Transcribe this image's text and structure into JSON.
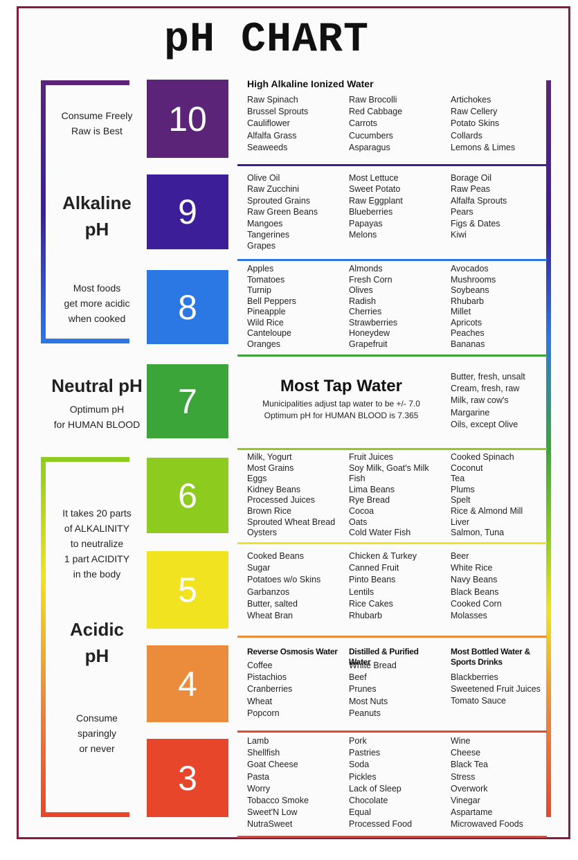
{
  "title": "pH CHART",
  "side": {
    "alkaline": {
      "note_top": [
        "Consume Freely",
        "Raw is Best"
      ],
      "label": [
        "Alkaline",
        "pH"
      ],
      "note_bottom": [
        "Most foods",
        "get more acidic",
        "when cooked"
      ]
    },
    "neutral": {
      "label": "Neutral pH",
      "note": [
        "Optimum pH",
        "for HUMAN BLOOD"
      ]
    },
    "acidic": {
      "note_top": [
        "It takes 20 parts",
        "of ALKALINITY",
        "to neutralize",
        "1 part ACIDITY",
        "in the body"
      ],
      "label": [
        "Acidic",
        "pH"
      ],
      "note_bottom": [
        "Consume",
        "sparingly",
        "or never"
      ]
    }
  },
  "levels": [
    {
      "ph": "10",
      "color": "#5b2479",
      "heading": "High Alkaline Ionized Water",
      "columns": [
        [
          "Raw Spinach",
          "Brussel Sprouts",
          "Cauliflower",
          "Alfalfa Grass",
          "Seaweeds"
        ],
        [
          "Raw Brocolli",
          "Red Cabbage",
          "Carrots",
          "Cucumbers",
          "Asparagus"
        ],
        [
          "Artichokes",
          "Raw Cellery",
          "Potato Skins",
          "Collards",
          "Lemons & Limes"
        ]
      ]
    },
    {
      "ph": "9",
      "color": "#3c1f98",
      "columns": [
        [
          "Olive Oil",
          "Raw Zucchini",
          "Sprouted Grains",
          "Raw Green Beans",
          "Mangoes",
          "Tangerines",
          "Grapes"
        ],
        [
          "Most Lettuce",
          "Sweet Potato",
          "Raw Eggplant",
          "Blueberries",
          "Papayas",
          "Melons"
        ],
        [
          "Borage Oil",
          "Raw Peas",
          "Alfalfa Sprouts",
          "Pears",
          "Figs & Dates",
          "Kiwi"
        ]
      ]
    },
    {
      "ph": "8",
      "color": "#2b78e4",
      "columns": [
        [
          "Apples",
          "Tomatoes",
          "Turnip",
          "Bell Peppers",
          "Pineapple",
          "Wild Rice",
          "Canteloupe",
          "Oranges"
        ],
        [
          "Almonds",
          "Fresh Corn",
          "Olives",
          "Radish",
          "Cherries",
          "Strawberries",
          "Honeydew",
          "Grapefruit"
        ],
        [
          "Avocados",
          "Mushrooms",
          "Soybeans",
          "Rhubarb",
          "Millet",
          "Apricots",
          "Peaches",
          "Bananas"
        ]
      ]
    },
    {
      "ph": "7",
      "color": "#3ba53a",
      "heading": "Most Tap Water",
      "notes": [
        "Municipalities adjust tap water to be +/- 7.0",
        "Optimum pH for HUMAN BLOOD is 7.365"
      ],
      "columns": [
        [
          "Butter, fresh, unsalt",
          "Cream, fresh, raw",
          "Milk, raw cow's",
          "Margarine",
          "Oils, except Olive"
        ]
      ]
    },
    {
      "ph": "6",
      "color": "#8dcc1f",
      "columns": [
        [
          "Milk, Yogurt",
          "Most Grains",
          "Eggs",
          "Kidney Beans",
          "Processed Juices",
          "Brown Rice",
          "Sprouted Wheat Bread",
          "Oysters"
        ],
        [
          "Fruit Juices",
          "Soy Milk, Goat's Milk",
          "Fish",
          "Lima Beans",
          "Rye Bread",
          "Cocoa",
          "Oats",
          "Cold Water Fish"
        ],
        [
          "Cooked Spinach",
          "Coconut",
          "Tea",
          "Plums",
          "Spelt",
          "Rice & Almond Mill",
          "Liver",
          "Salmon, Tuna"
        ]
      ]
    },
    {
      "ph": "5",
      "color": "#f1e31f",
      "columns": [
        [
          "Cooked Beans",
          "Sugar",
          "Potatoes w/o Skins",
          "Garbanzos",
          "Butter, salted",
          "Wheat Bran"
        ],
        [
          "Chicken & Turkey",
          "Canned Fruit",
          "Pinto Beans",
          "Lentils",
          "Rice Cakes",
          "Rhubarb"
        ],
        [
          "Beer",
          "White Rice",
          "Navy Beans",
          "Black Beans",
          "Cooked Corn",
          "Molasses"
        ]
      ]
    },
    {
      "ph": "4",
      "color": "#eb8b3c",
      "column_headings": [
        "Reverse Osmosis Water",
        "Distilled & Purified Water",
        "Most Bottled Water & Sports Drinks"
      ],
      "columns": [
        [
          "Coffee",
          "Pistachios",
          "Cranberries",
          "Wheat",
          "Popcorn"
        ],
        [
          "White Bread",
          "Beef",
          "Prunes",
          "Most Nuts",
          "Peanuts"
        ],
        [
          "Blackberries",
          "Sweetened Fruit Juices",
          "Tomato Sauce"
        ]
      ]
    },
    {
      "ph": "3",
      "color": "#e8462b",
      "columns": [
        [
          "Lamb",
          "Shellfish",
          "Goat Cheese",
          "Pasta",
          "Worry",
          "Tobacco Smoke",
          "Sweet'N Low",
          "NutraSweet"
        ],
        [
          "Pork",
          "Pastries",
          "Soda",
          "Pickles",
          "Lack of Sleep",
          "Chocolate",
          "Equal",
          "Processed Food"
        ],
        [
          "Wine",
          "Cheese",
          "Black Tea",
          "Stress",
          "Overwork",
          "Vinegar",
          "Aspartame",
          "Microwaved Foods"
        ]
      ]
    }
  ]
}
